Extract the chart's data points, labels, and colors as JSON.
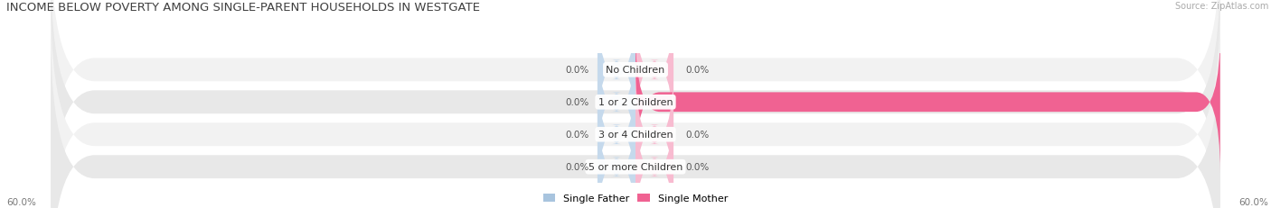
{
  "title": "INCOME BELOW POVERTY AMONG SINGLE-PARENT HOUSEHOLDS IN WESTGATE",
  "source": "Source: ZipAtlas.com",
  "categories": [
    "No Children",
    "1 or 2 Children",
    "3 or 4 Children",
    "5 or more Children"
  ],
  "single_father": [
    0.0,
    0.0,
    0.0,
    0.0
  ],
  "single_mother": [
    0.0,
    60.0,
    0.0,
    0.0
  ],
  "axis_max": 60.0,
  "father_color": "#a8c4de",
  "mother_color": "#f06292",
  "mother_light_color": "#f8bbd0",
  "father_light_color": "#c5d9ec",
  "row_bg_even": "#f2f2f2",
  "row_bg_odd": "#e8e8e8",
  "title_fontsize": 9.5,
  "source_fontsize": 7,
  "label_fontsize": 7.5,
  "category_fontsize": 8,
  "legend_fontsize": 8,
  "background_color": "#ffffff",
  "axis_label_left": "60.0%",
  "axis_label_right": "60.0%"
}
